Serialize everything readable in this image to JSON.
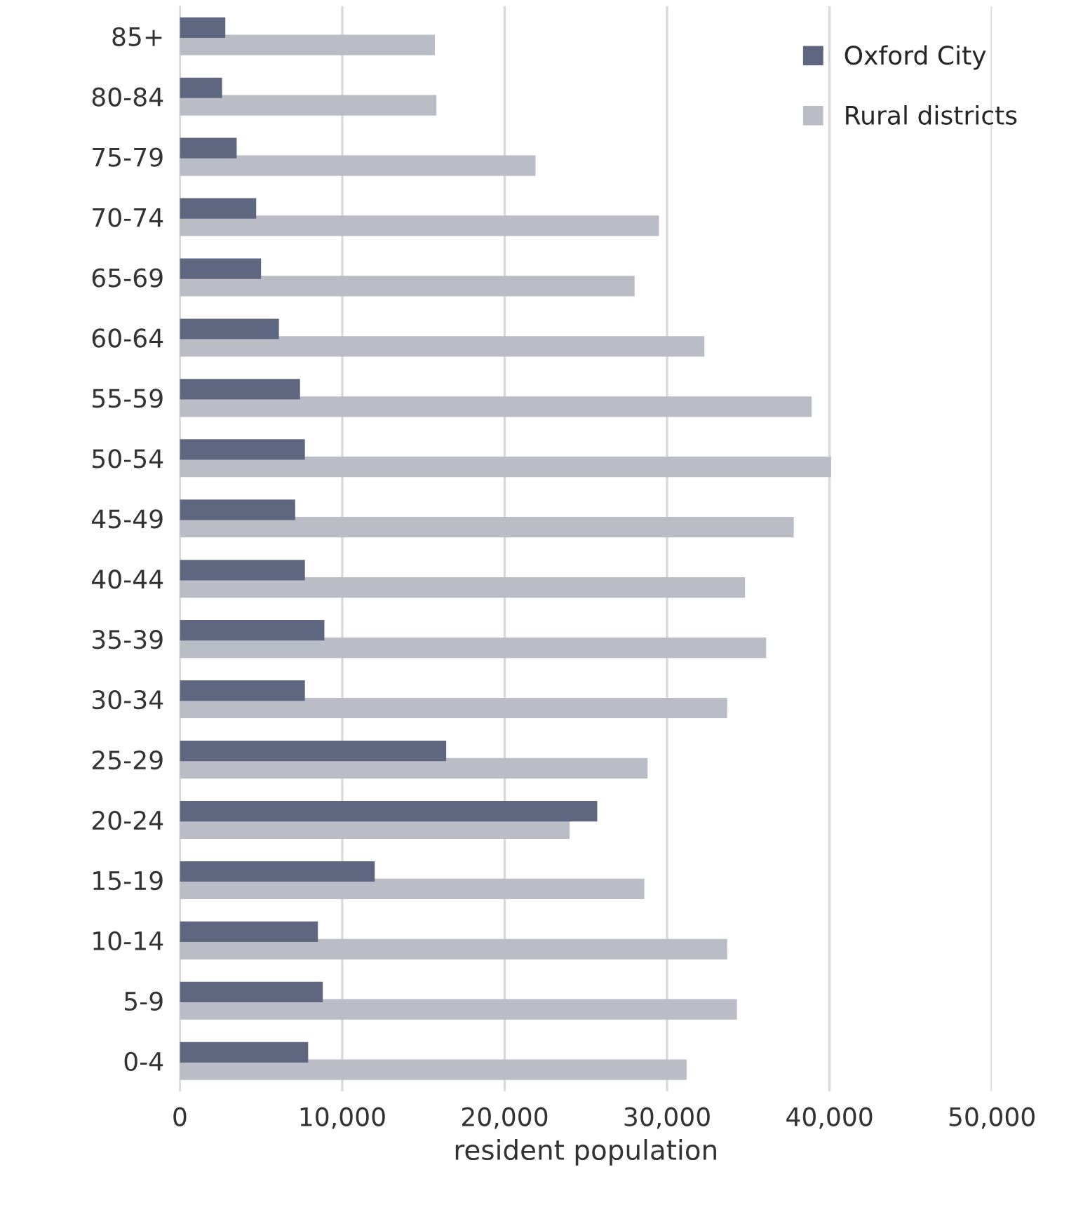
{
  "chart_data": {
    "type": "bar",
    "orientation": "horizontal",
    "xlabel": "resident population",
    "categories": [
      "85+",
      "80-84",
      "75-79",
      "70-74",
      "65-69",
      "60-64",
      "55-59",
      "50-54",
      "45-49",
      "40-44",
      "35-39",
      "30-34",
      "25-29",
      "20-24",
      "15-19",
      "10-14",
      "5-9",
      "0-4"
    ],
    "series": [
      {
        "name": "Oxford City",
        "color": "#5f6680",
        "values": [
          2800,
          2600,
          3500,
          4700,
          5000,
          6100,
          7400,
          7700,
          7100,
          7700,
          8900,
          7700,
          16400,
          25700,
          12000,
          8500,
          8800,
          7900
        ]
      },
      {
        "name": "Rural districts",
        "color": "#babcc6",
        "values": [
          15700,
          15800,
          21900,
          29500,
          28000,
          32300,
          38900,
          40100,
          37800,
          34800,
          36100,
          33700,
          28800,
          24000,
          28600,
          33700,
          34300,
          31200
        ]
      }
    ],
    "xlim": [
      0,
      50000
    ],
    "xticks": [
      {
        "value": 0,
        "label": "0"
      },
      {
        "value": 10000,
        "label": "10,000"
      },
      {
        "value": 20000,
        "label": "20,000"
      },
      {
        "value": 30000,
        "label": "30,000"
      },
      {
        "value": 40000,
        "label": "40,000"
      },
      {
        "value": 50000,
        "label": "50,000"
      }
    ],
    "grid": "x",
    "legend": "top right"
  }
}
